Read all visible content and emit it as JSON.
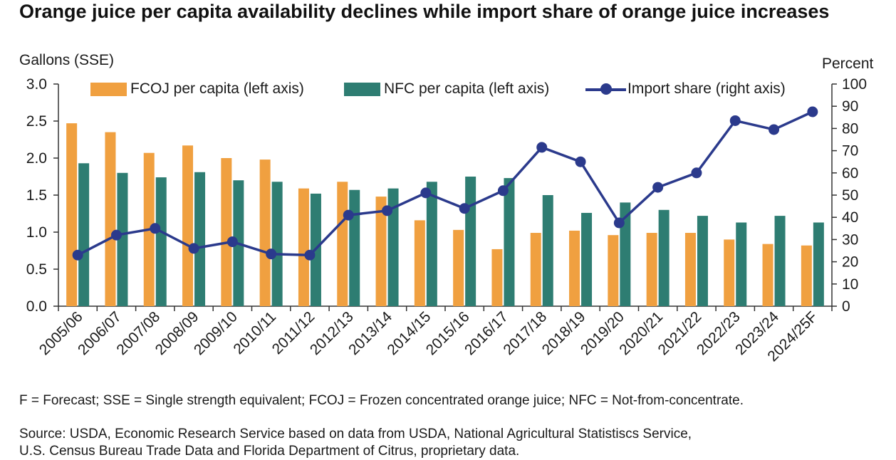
{
  "chart_title": "Orange juice per capita availability declines while import share of orange juice increases",
  "left_unit": "Gallons (SSE)",
  "right_unit": "Percent",
  "colors": {
    "fcoj": "#F0A040",
    "nfc": "#2E7D72",
    "import": "#2B3A8C",
    "axis": "#333333"
  },
  "legend": {
    "fcoj": "FCOJ per capita (left axis)",
    "nfc": "NFC per capita (left axis)",
    "import": "Import share (right axis)"
  },
  "footnote": "F = Forecast; SSE = Single strength equivalent; FCOJ = Frozen concentrated orange juice; NFC = Not-from-concentrate.",
  "source_line1": "Source: USDA, Economic Research Service based on data from USDA, National Agricultural Statistiscs Service,",
  "source_line2": "U.S. Census Bureau Trade Data and Florida Department of Citrus, proprietary data.",
  "chart_data": {
    "type": "bar",
    "title": "Orange juice per capita availability declines while import share of orange juice increases",
    "ylabel": "Gallons (SSE)",
    "y2label": "Percent",
    "ylim": [
      0,
      3.0
    ],
    "yticks": [
      "0.0",
      "0.5",
      "1.0",
      "1.5",
      "2.0",
      "2.5",
      "3.0"
    ],
    "y2lim": [
      0,
      100
    ],
    "y2ticks": [
      "0",
      "10",
      "20",
      "30",
      "40",
      "50",
      "60",
      "70",
      "80",
      "90",
      "100"
    ],
    "grid": false,
    "legend_position": "top",
    "categories": [
      "2005/06",
      "2006/07",
      "2007/08",
      "2008/09",
      "2009/10",
      "2010/11",
      "2011/12",
      "2012/13",
      "2013/14",
      "2014/15",
      "2015/16",
      "2016/17",
      "2017/18",
      "2018/19",
      "2019/20",
      "2020/21",
      "2021/22",
      "2022/23",
      "2023/24",
      "2024/25F"
    ],
    "series": [
      {
        "name": "FCOJ per capita (left axis)",
        "type": "bar",
        "axis": "left",
        "values": [
          2.47,
          2.35,
          2.07,
          2.17,
          2.0,
          1.98,
          1.59,
          1.68,
          1.48,
          1.16,
          1.03,
          0.77,
          0.99,
          1.02,
          0.96,
          0.99,
          0.99,
          0.9,
          0.84,
          0.82
        ]
      },
      {
        "name": "NFC per capita (left axis)",
        "type": "bar",
        "axis": "left",
        "values": [
          1.93,
          1.8,
          1.74,
          1.81,
          1.7,
          1.68,
          1.52,
          1.57,
          1.59,
          1.68,
          1.75,
          1.73,
          1.5,
          1.26,
          1.4,
          1.3,
          1.22,
          1.13,
          1.22,
          1.13
        ]
      },
      {
        "name": "Import share (right axis)",
        "type": "line",
        "axis": "right",
        "values": [
          23,
          32,
          35,
          26,
          29,
          23.5,
          23,
          41,
          43,
          51,
          44,
          52,
          71.5,
          65,
          37.5,
          53.5,
          60,
          83.5,
          79.5,
          87.5
        ]
      }
    ]
  }
}
